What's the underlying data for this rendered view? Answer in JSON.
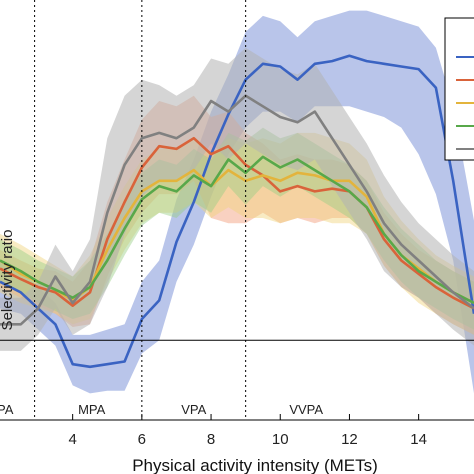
{
  "chart_data": {
    "type": "line",
    "title": "",
    "xlabel": "Physical activity intensity (METs)",
    "ylabel": "Selectivity ratio",
    "xlim": [
      1.9,
      15.6
    ],
    "ylim": [
      -0.3,
      1.28
    ],
    "x_ticks": [
      4,
      6,
      8,
      10,
      12,
      14
    ],
    "grid": false,
    "legend": "top-right (cropped, no readable labels)",
    "reference_line_y": 0,
    "intensity_thresholds": [
      {
        "x": 2.9,
        "label": "PA"
      },
      {
        "x": 6.0,
        "label": "MPA"
      },
      {
        "x": 9.0,
        "label": "VPA"
      },
      {
        "x": 16.0,
        "label": "VVPA"
      }
    ],
    "zone_labels": [
      {
        "text": "PA",
        "x": 2.05
      },
      {
        "text": "MPA",
        "x": 4.55
      },
      {
        "text": "VPA",
        "x": 7.5
      },
      {
        "text": "VVPA",
        "x": 10.75
      }
    ],
    "series": [
      {
        "color": "#3a63c2",
        "band_color": "#7f96d8",
        "band_opacity": 0.55,
        "x": [
          1.9,
          2.5,
          3.0,
          3.5,
          4.0,
          4.5,
          5.0,
          5.5,
          6.0,
          6.5,
          7.0,
          7.5,
          8.0,
          8.5,
          9.0,
          9.5,
          10.0,
          10.5,
          11.0,
          11.5,
          12.0,
          12.5,
          13.0,
          13.5,
          14.0,
          14.5,
          15.0,
          15.6
        ],
        "values": [
          0.22,
          0.18,
          0.12,
          0.06,
          -0.09,
          -0.1,
          -0.09,
          -0.08,
          0.08,
          0.15,
          0.37,
          0.52,
          0.7,
          0.85,
          0.98,
          1.04,
          1.03,
          0.98,
          1.04,
          1.05,
          1.07,
          1.05,
          1.04,
          1.03,
          1.02,
          0.95,
          0.6,
          0.1
        ],
        "upper": [
          0.3,
          0.26,
          0.2,
          0.14,
          0.02,
          0.02,
          0.04,
          0.06,
          0.22,
          0.3,
          0.53,
          0.68,
          0.86,
          1.0,
          1.16,
          1.22,
          1.2,
          1.14,
          1.2,
          1.22,
          1.24,
          1.24,
          1.22,
          1.2,
          1.18,
          1.1,
          0.88,
          0.45
        ],
        "lower": [
          0.12,
          0.1,
          0.04,
          -0.02,
          -0.17,
          -0.2,
          -0.19,
          -0.19,
          -0.05,
          0.0,
          0.22,
          0.36,
          0.54,
          0.7,
          0.8,
          0.86,
          0.86,
          0.82,
          0.88,
          0.88,
          0.88,
          0.86,
          0.84,
          0.8,
          0.7,
          0.55,
          0.3,
          -0.2
        ]
      },
      {
        "color": "#d9633a",
        "band_color": "#f4a383",
        "band_opacity": 0.5,
        "x": [
          1.9,
          2.5,
          3.0,
          3.5,
          4.0,
          4.5,
          5.0,
          5.5,
          6.0,
          6.5,
          7.0,
          7.5,
          8.0,
          8.5,
          9.0,
          9.5,
          10.0,
          10.5,
          11.0,
          11.5,
          12.0,
          12.5,
          13.0,
          13.5,
          14.0,
          14.5,
          15.0,
          15.6
        ],
        "values": [
          0.27,
          0.23,
          0.2,
          0.18,
          0.13,
          0.18,
          0.38,
          0.52,
          0.65,
          0.73,
          0.72,
          0.76,
          0.7,
          0.73,
          0.66,
          0.62,
          0.56,
          0.58,
          0.56,
          0.57,
          0.56,
          0.5,
          0.38,
          0.3,
          0.25,
          0.2,
          0.16,
          0.12
        ],
        "upper": [
          0.34,
          0.3,
          0.27,
          0.26,
          0.22,
          0.3,
          0.52,
          0.68,
          0.83,
          0.9,
          0.88,
          0.92,
          0.84,
          0.86,
          0.78,
          0.74,
          0.68,
          0.7,
          0.68,
          0.68,
          0.66,
          0.6,
          0.48,
          0.4,
          0.34,
          0.3,
          0.26,
          0.22
        ],
        "lower": [
          0.2,
          0.16,
          0.13,
          0.1,
          0.05,
          0.06,
          0.24,
          0.38,
          0.48,
          0.55,
          0.55,
          0.6,
          0.46,
          0.44,
          0.44,
          0.48,
          0.44,
          0.46,
          0.44,
          0.46,
          0.46,
          0.4,
          0.28,
          0.2,
          0.16,
          0.1,
          0.06,
          0.02
        ]
      },
      {
        "color": "#e3b43c",
        "band_color": "#f0d27a",
        "band_opacity": 0.45,
        "x": [
          1.9,
          2.5,
          3.0,
          3.5,
          4.0,
          4.5,
          5.0,
          5.5,
          6.0,
          6.5,
          7.0,
          7.5,
          8.0,
          8.5,
          9.0,
          9.5,
          10.0,
          10.5,
          11.0,
          11.5,
          12.0,
          12.5,
          13.0,
          13.5,
          14.0,
          14.5,
          15.0,
          15.6
        ],
        "values": [
          0.3,
          0.25,
          0.22,
          0.19,
          0.15,
          0.2,
          0.34,
          0.46,
          0.56,
          0.6,
          0.6,
          0.64,
          0.58,
          0.64,
          0.6,
          0.62,
          0.6,
          0.63,
          0.62,
          0.6,
          0.6,
          0.54,
          0.4,
          0.32,
          0.27,
          0.22,
          0.18,
          0.14
        ],
        "upper": [
          0.4,
          0.36,
          0.32,
          0.28,
          0.24,
          0.32,
          0.46,
          0.58,
          0.68,
          0.72,
          0.72,
          0.76,
          0.7,
          0.76,
          0.74,
          0.76,
          0.74,
          0.78,
          0.78,
          0.76,
          0.74,
          0.68,
          0.54,
          0.45,
          0.38,
          0.32,
          0.28,
          0.24
        ],
        "lower": [
          0.18,
          0.14,
          0.12,
          0.1,
          0.06,
          0.08,
          0.22,
          0.34,
          0.44,
          0.48,
          0.48,
          0.52,
          0.46,
          0.5,
          0.46,
          0.46,
          0.44,
          0.46,
          0.46,
          0.44,
          0.44,
          0.4,
          0.28,
          0.2,
          0.14,
          0.1,
          0.06,
          0.02
        ]
      },
      {
        "color": "#58a84a",
        "band_color": "#98cf86",
        "band_opacity": 0.45,
        "x": [
          1.9,
          2.5,
          3.0,
          3.5,
          4.0,
          4.5,
          5.0,
          5.5,
          6.0,
          6.5,
          7.0,
          7.5,
          8.0,
          8.5,
          9.0,
          9.5,
          10.0,
          10.5,
          11.0,
          11.5,
          12.0,
          12.5,
          13.0,
          13.5,
          14.0,
          14.5,
          15.0,
          15.6
        ],
        "values": [
          0.3,
          0.26,
          0.22,
          0.19,
          0.16,
          0.2,
          0.3,
          0.42,
          0.53,
          0.58,
          0.56,
          0.62,
          0.58,
          0.68,
          0.63,
          0.69,
          0.65,
          0.68,
          0.64,
          0.6,
          0.56,
          0.5,
          0.4,
          0.32,
          0.26,
          0.22,
          0.18,
          0.14
        ],
        "upper": [
          0.38,
          0.34,
          0.3,
          0.27,
          0.24,
          0.3,
          0.4,
          0.52,
          0.63,
          0.68,
          0.66,
          0.72,
          0.68,
          0.78,
          0.75,
          0.8,
          0.76,
          0.78,
          0.74,
          0.7,
          0.66,
          0.6,
          0.5,
          0.42,
          0.36,
          0.3,
          0.26,
          0.22
        ],
        "lower": [
          0.22,
          0.18,
          0.14,
          0.11,
          0.08,
          0.1,
          0.2,
          0.32,
          0.43,
          0.48,
          0.46,
          0.52,
          0.48,
          0.58,
          0.51,
          0.58,
          0.54,
          0.58,
          0.54,
          0.5,
          0.46,
          0.4,
          0.3,
          0.22,
          0.16,
          0.12,
          0.08,
          0.04
        ]
      },
      {
        "color": "#808080",
        "band_color": "#b3b3b3",
        "band_opacity": 0.55,
        "x": [
          1.9,
          2.5,
          3.0,
          3.5,
          4.0,
          4.5,
          5.0,
          5.5,
          6.0,
          6.5,
          7.0,
          7.5,
          8.0,
          8.5,
          9.0,
          9.5,
          10.0,
          10.5,
          11.0,
          11.5,
          12.0,
          12.5,
          13.0,
          13.5,
          14.0,
          14.5,
          15.0,
          15.6
        ],
        "values": [
          0.06,
          0.06,
          0.12,
          0.24,
          0.14,
          0.22,
          0.48,
          0.66,
          0.76,
          0.78,
          0.76,
          0.8,
          0.9,
          0.86,
          0.92,
          0.88,
          0.84,
          0.82,
          0.86,
          0.76,
          0.66,
          0.56,
          0.44,
          0.36,
          0.3,
          0.24,
          0.18,
          0.12
        ],
        "upper": [
          0.16,
          0.16,
          0.22,
          0.36,
          0.26,
          0.38,
          0.76,
          0.92,
          0.98,
          0.96,
          0.92,
          0.96,
          1.06,
          1.04,
          1.1,
          1.06,
          1.02,
          1.0,
          1.04,
          0.94,
          0.84,
          0.74,
          0.62,
          0.52,
          0.44,
          0.38,
          0.32,
          0.26
        ],
        "lower": [
          -0.04,
          -0.04,
          0.02,
          0.12,
          0.02,
          0.06,
          0.2,
          0.4,
          0.54,
          0.6,
          0.6,
          0.64,
          0.74,
          0.68,
          0.74,
          0.7,
          0.66,
          0.64,
          0.68,
          0.58,
          0.48,
          0.38,
          0.26,
          0.2,
          0.16,
          0.1,
          0.04,
          -0.02
        ]
      }
    ]
  }
}
